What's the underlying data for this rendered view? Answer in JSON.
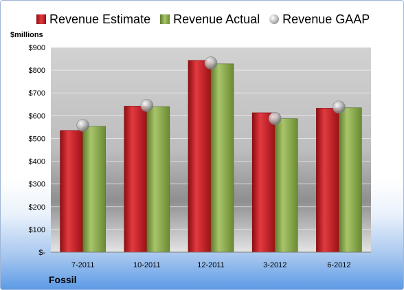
{
  "colors": {
    "estimate": "#cc1f25",
    "actual": "#8fb04f",
    "gaap": "#b8b8b8"
  },
  "chart_data": {
    "type": "bar",
    "categories": [
      "7-2011",
      "10-2011",
      "12-2011",
      "3-2012",
      "6-2012"
    ],
    "series": [
      {
        "name": "Revenue Estimate",
        "values": [
          535,
          642,
          843,
          613,
          633
        ]
      },
      {
        "name": "Revenue Actual",
        "values": [
          553,
          640,
          828,
          587,
          635
        ]
      },
      {
        "name": "Revenue GAAP",
        "values": [
          558,
          645,
          832,
          588,
          638
        ]
      }
    ],
    "ylabel": "$millions",
    "ylim": [
      0,
      900
    ],
    "yticks": [
      0,
      100,
      200,
      300,
      400,
      500,
      600,
      700,
      800,
      900
    ],
    "ytick_labels": [
      "$-",
      "$100",
      "$200",
      "$300",
      "$400",
      "$500",
      "$600",
      "$700",
      "$800",
      "$900"
    ],
    "grid": true,
    "legend_position": "top",
    "footer": "Fossil"
  }
}
